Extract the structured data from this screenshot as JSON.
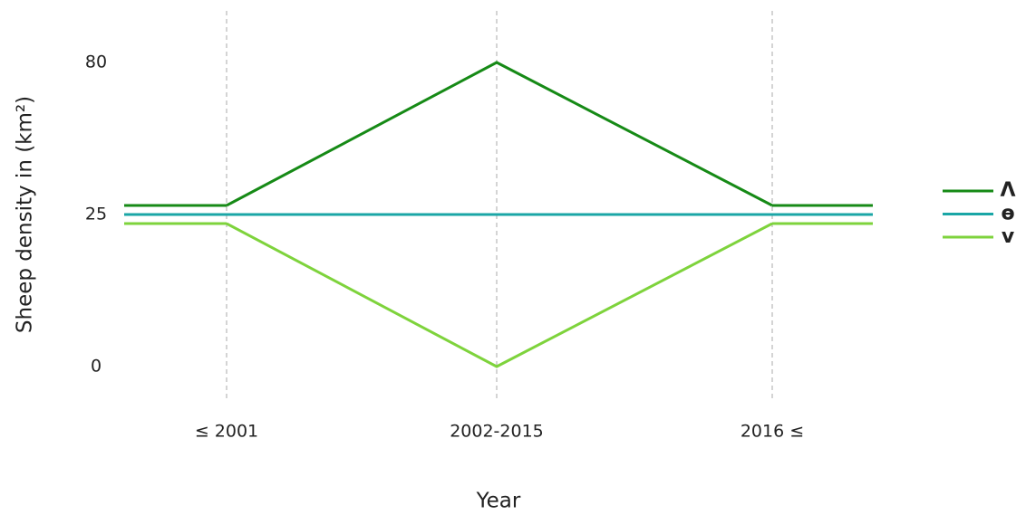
{
  "chart_data": {
    "type": "line",
    "xlabel": "Year",
    "ylabel": "Sheep density in (km²)",
    "categories": [
      "≤ 2001",
      "2002-2015",
      "2016 ≤"
    ],
    "series": [
      {
        "name": "Λ",
        "color": "#168a16",
        "values": [
          25,
          80,
          25
        ]
      },
      {
        "name": "ɵ",
        "color": "#1aa6a6",
        "values": [
          25,
          25,
          25
        ]
      },
      {
        "name": "v",
        "color": "#7ed33c",
        "values": [
          25,
          0,
          25
        ]
      }
    ],
    "ylim": [
      0,
      80
    ],
    "yticks": [
      0,
      25,
      80
    ],
    "grid": true,
    "legend": "right"
  }
}
